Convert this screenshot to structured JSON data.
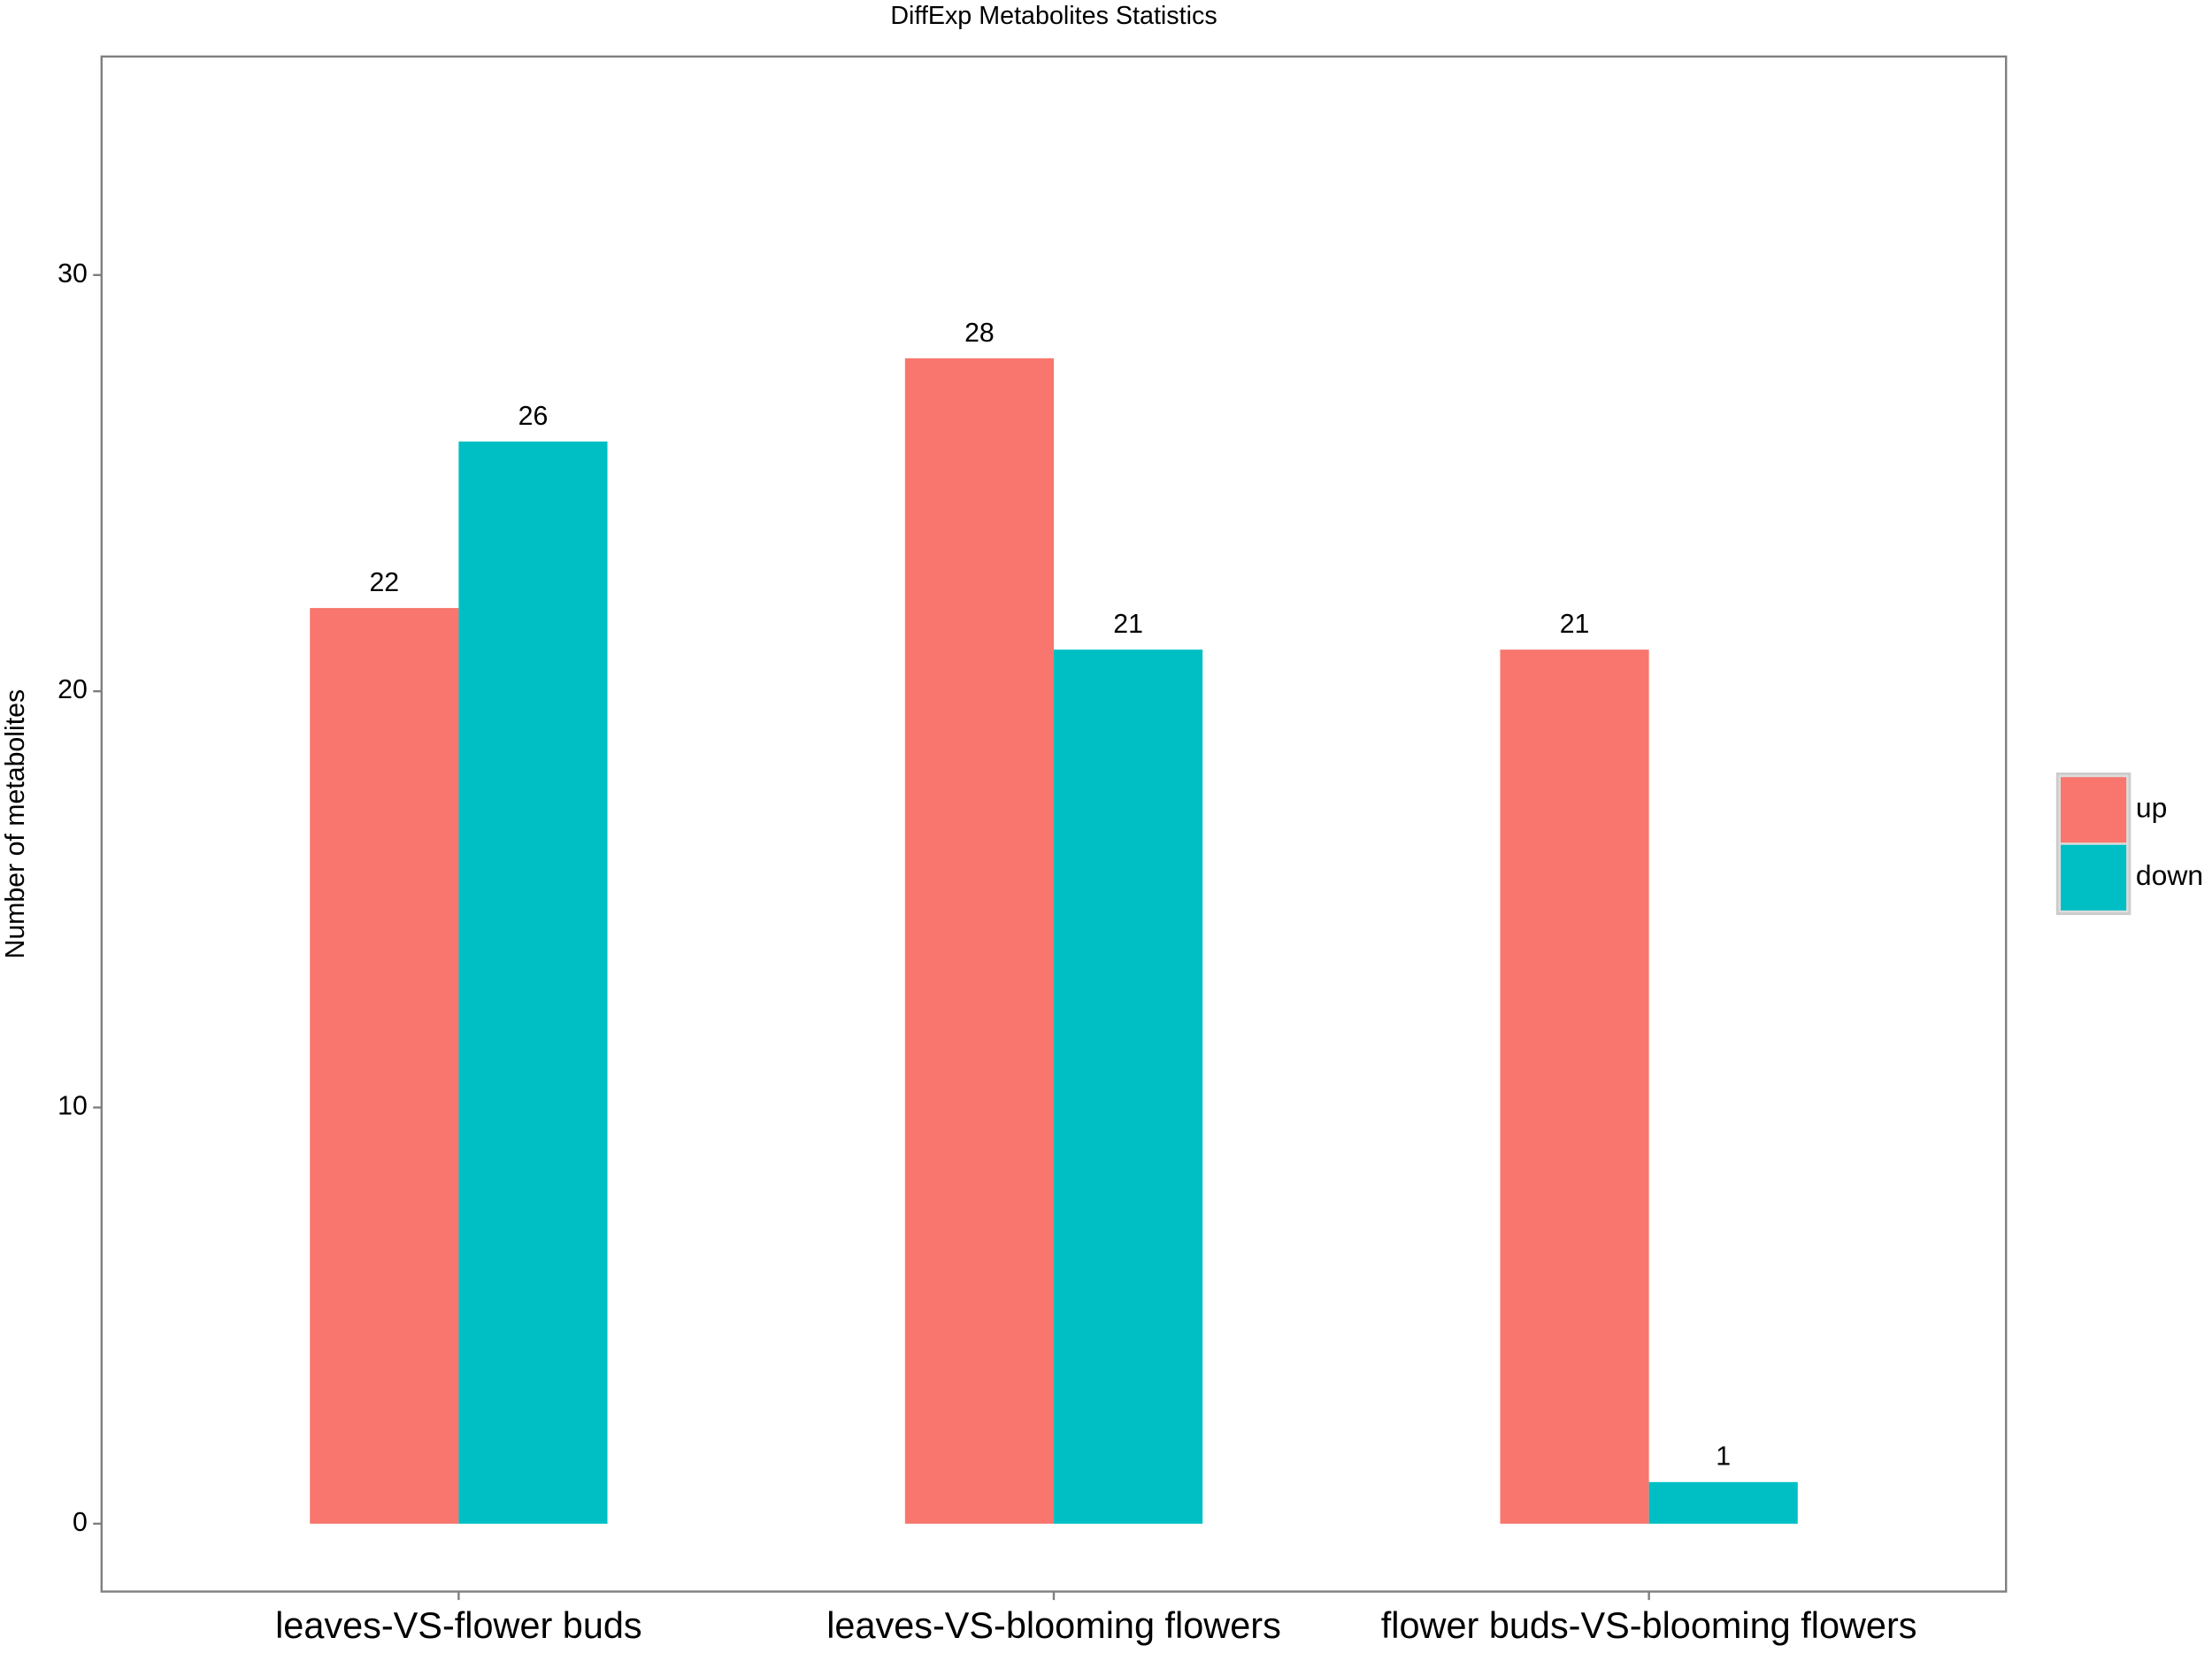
{
  "chart_data": {
    "type": "bar",
    "title": "DiffExp Metabolites Statistics",
    "y_label": "Number of metabolites",
    "categories": [
      "leaves-VS-flower buds",
      "leaves-VS-blooming flowers",
      "flower buds-VS-blooming flowers"
    ],
    "series": [
      {
        "name": "up",
        "color": "#F8766D",
        "values": [
          22,
          28,
          21
        ]
      },
      {
        "name": "down",
        "color": "#00BFC4",
        "values": [
          26,
          21,
          1
        ]
      }
    ],
    "ylim": [
      -1.63,
      35.25
    ],
    "yticks": [
      0,
      10,
      20,
      30
    ],
    "grid": false,
    "legend": "right"
  }
}
